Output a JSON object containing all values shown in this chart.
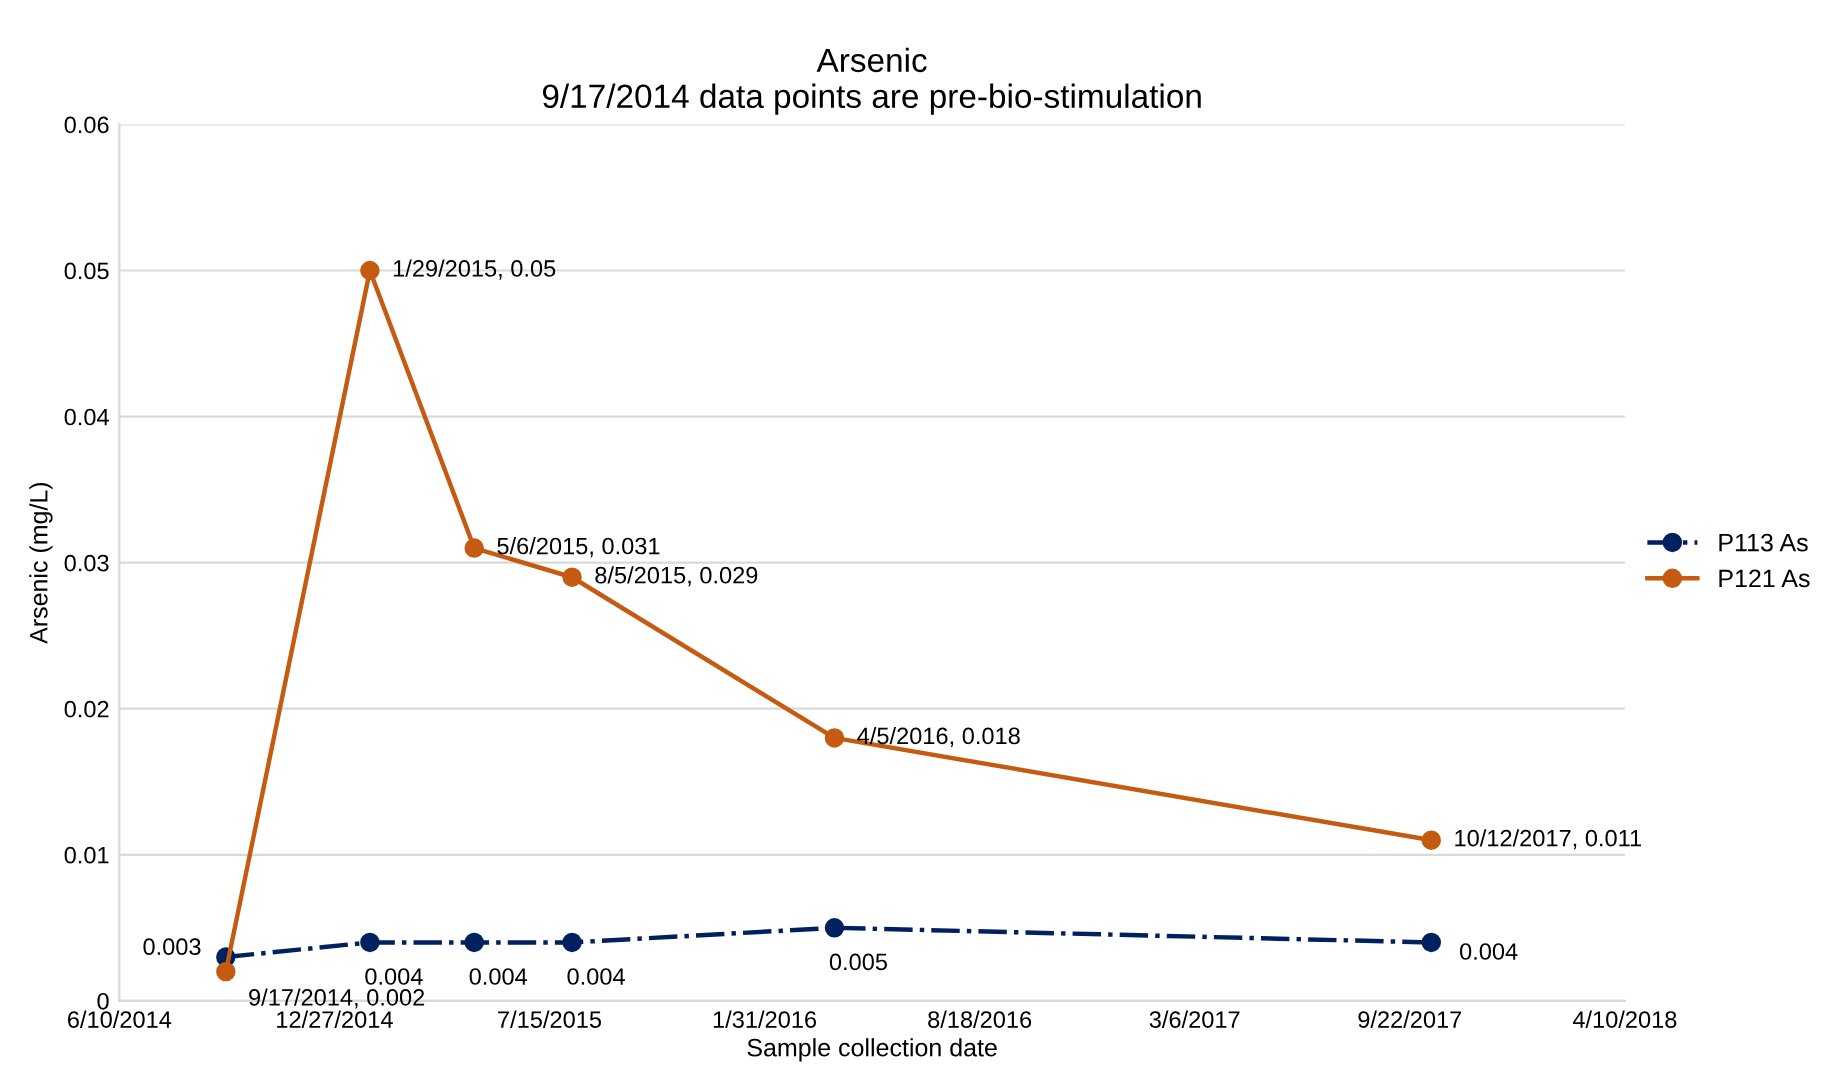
{
  "chart_data": {
    "type": "line",
    "title": "Arsenic\n9/17/2014 data points are pre-bio-stimulation",
    "xlabel": "Sample collection date",
    "ylabel": "Arsenic (mg/L)",
    "x": [
      "2014-09-17",
      "2015-01-29",
      "2015-05-06",
      "2015-08-05",
      "2016-04-05",
      "2017-10-12"
    ],
    "series": [
      {
        "name": "P113 As",
        "color": "#002060",
        "line_style": "dashed",
        "values": [
          0.003,
          0.004,
          0.004,
          0.004,
          0.005,
          0.004
        ],
        "value_labels": [
          "0.003",
          "0.004",
          "0.004",
          "0.004",
          "0.005",
          "0.004"
        ]
      },
      {
        "name": "P121 As",
        "color": "#c55a11",
        "line_style": "solid",
        "values": [
          0.002,
          0.05,
          0.031,
          0.029,
          0.018,
          0.011
        ],
        "value_labels": [
          "9/17/2014, 0.002",
          "1/29/2015, 0.05",
          "5/6/2015, 0.031",
          "8/5/2015, 0.029",
          "4/5/2016, 0.018",
          "10/12/2017, 0.011"
        ]
      }
    ],
    "xlim": [
      "2014-06-10",
      "2018-04-10"
    ],
    "xticks": [
      {
        "value": "2014-06-10",
        "label": "6/10/2014"
      },
      {
        "value": "2014-12-27",
        "label": "12/27/2014"
      },
      {
        "value": "2015-07-15",
        "label": "7/15/2015"
      },
      {
        "value": "2016-01-31",
        "label": "1/31/2016"
      },
      {
        "value": "2016-08-18",
        "label": "8/18/2016"
      },
      {
        "value": "2017-03-06",
        "label": "3/6/2017"
      },
      {
        "value": "2017-09-22",
        "label": "9/22/2017"
      },
      {
        "value": "2018-04-10",
        "label": "4/10/2018"
      }
    ],
    "ylim": [
      0,
      0.06
    ],
    "yticks": [
      0,
      0.01,
      0.02,
      0.03,
      0.04,
      0.05,
      0.06
    ],
    "grid": "y",
    "legend": "right",
    "marker": "circle"
  }
}
